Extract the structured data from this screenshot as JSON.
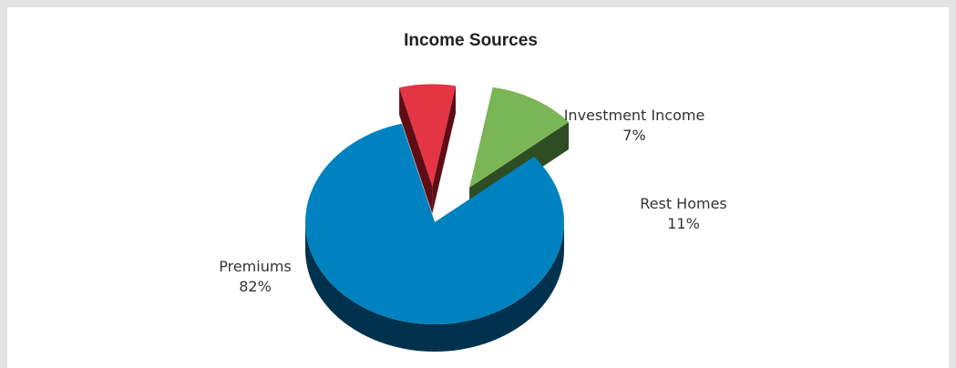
{
  "chart_data": {
    "type": "pie",
    "title": "Income Sources",
    "slices": [
      {
        "label": "Premiums",
        "value": 82,
        "value_label": "82%",
        "color": "#0082c0",
        "side_color": "#00324e"
      },
      {
        "label": "Investment Income",
        "value": 7,
        "value_label": "7%",
        "color": "#e43545",
        "side_color": "#5e0d15"
      },
      {
        "label": "Rest Homes",
        "value": 11,
        "value_label": "11%",
        "color": "#7ab655",
        "side_color": "#2e4d22"
      }
    ],
    "exploded": [
      "Investment Income",
      "Rest Homes"
    ],
    "three_d": true,
    "legend": "none"
  }
}
